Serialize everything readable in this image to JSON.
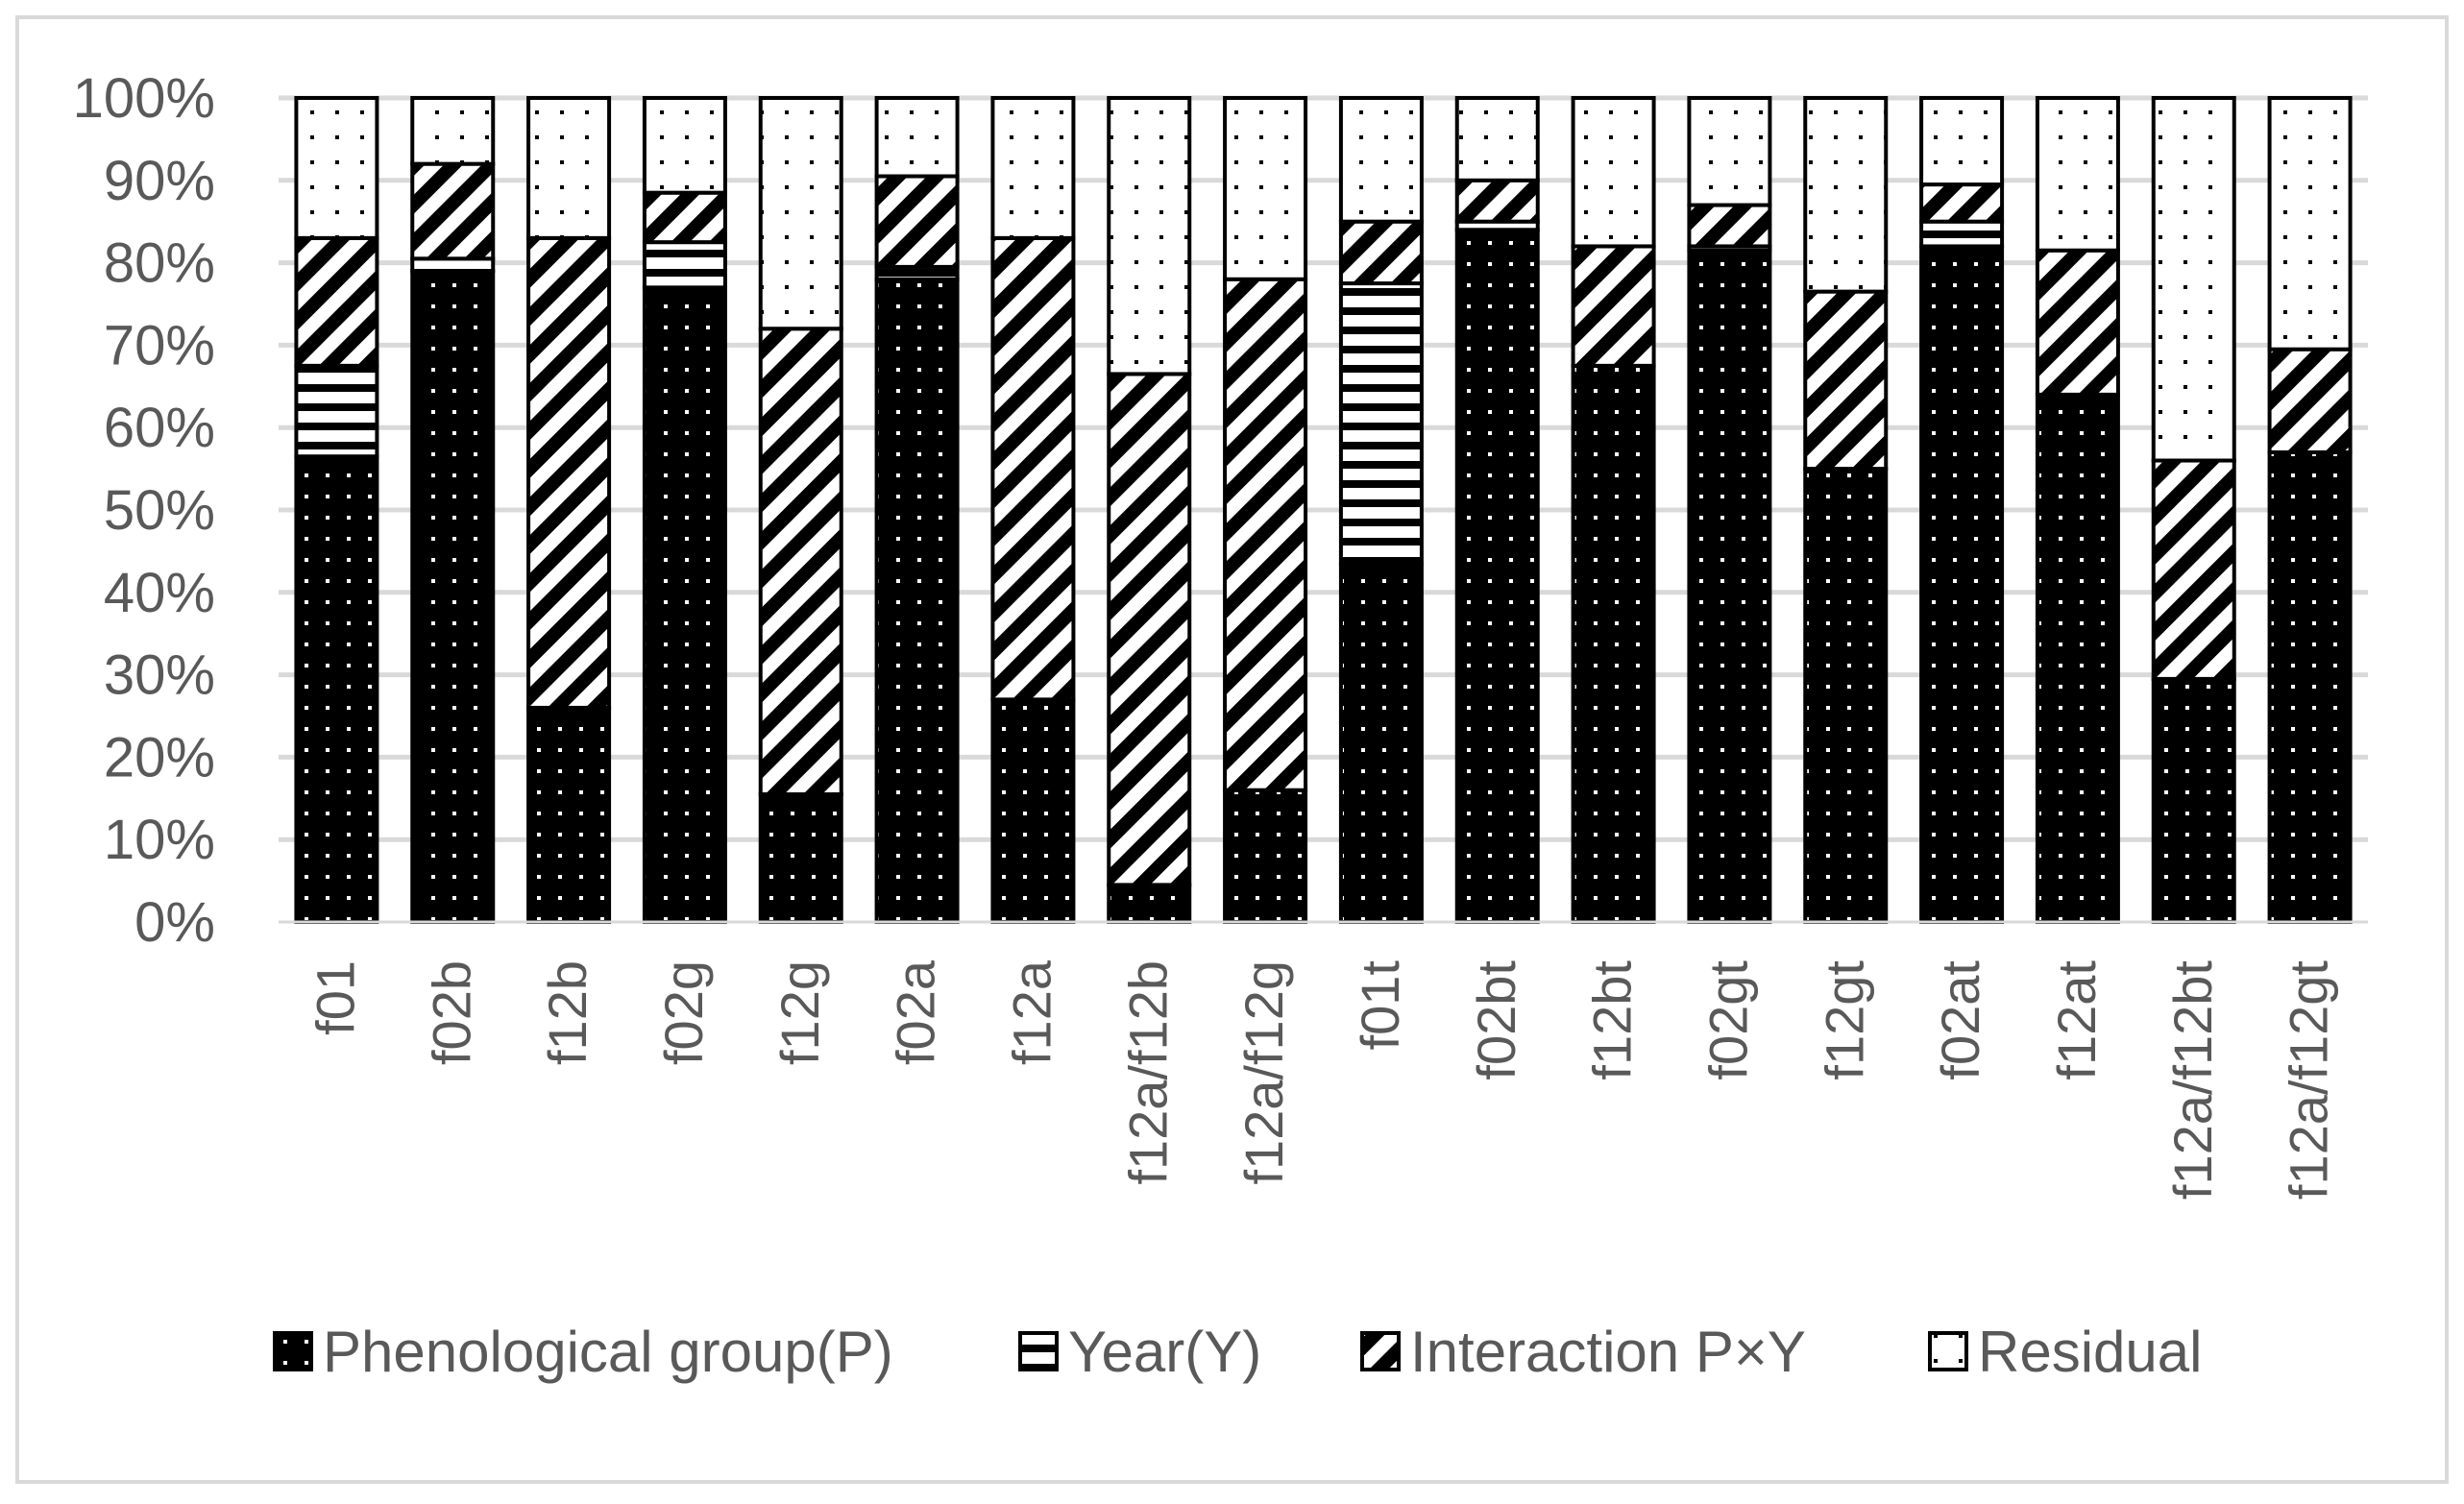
{
  "chart_data": {
    "type": "bar",
    "stacked": "percent",
    "title": "",
    "xlabel": "",
    "ylabel": "",
    "ylim": [
      0,
      100
    ],
    "y_ticks": [
      "0%",
      "10%",
      "20%",
      "30%",
      "40%",
      "50%",
      "60%",
      "70%",
      "80%",
      "90%",
      "100%"
    ],
    "categories": [
      "f01",
      "f02b",
      "f12b",
      "f02g",
      "f12g",
      "f02a",
      "f12a",
      "f12a/f12b",
      "f12a/f12g",
      "f01t",
      "f02bt",
      "f12bt",
      "f02gt",
      "f12gt",
      "f02at",
      "f12at",
      "f12a/f12bt",
      "f12a/f12gt"
    ],
    "series": [
      {
        "name": "Phenological group(P)",
        "pattern": "dots-on-black",
        "values": [
          56.5,
          79,
          26,
          77,
          15.5,
          78,
          27,
          4.5,
          16,
          43.5,
          84,
          67.5,
          81.5,
          55,
          82,
          64,
          29.5,
          57
        ]
      },
      {
        "name": "Year(Y)",
        "pattern": "horizontal-stripes",
        "values": [
          11,
          1.5,
          0,
          5.5,
          0,
          1.5,
          0,
          0,
          0,
          34,
          1,
          0,
          0.5,
          0,
          3,
          0,
          0,
          0
        ]
      },
      {
        "name": "Interaction P×Y",
        "pattern": "diagonal-stripes",
        "values": [
          15.5,
          11.5,
          57,
          6,
          56.5,
          11,
          56,
          62,
          62,
          7.5,
          5,
          14.5,
          5,
          21.5,
          4.5,
          17.5,
          26.5,
          12.5
        ]
      },
      {
        "name": "Residual",
        "pattern": "dots-on-white",
        "values": [
          17,
          8,
          17,
          11.5,
          28,
          9.5,
          17,
          33.5,
          22,
          15,
          10,
          18,
          13,
          23.5,
          10.5,
          18.5,
          44,
          30.5
        ]
      }
    ],
    "grid": true,
    "legend": "bottom"
  }
}
